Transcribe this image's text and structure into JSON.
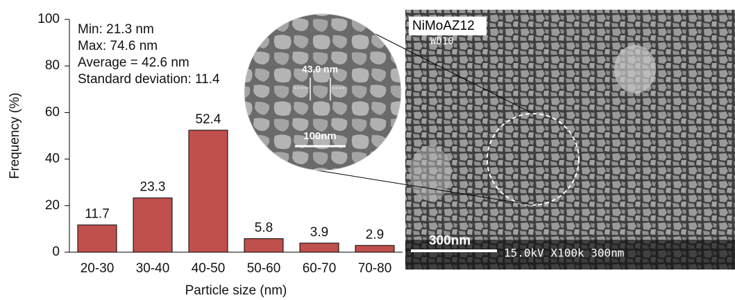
{
  "chart_data": {
    "type": "bar",
    "categories": [
      "20-30",
      "30-40",
      "40-50",
      "50-60",
      "60-70",
      "70-80"
    ],
    "values": [
      11.7,
      23.3,
      52.4,
      5.8,
      3.9,
      2.9
    ],
    "color": "#c0504d",
    "ylim": [
      0,
      100
    ],
    "yticks": [
      0,
      20,
      40,
      60,
      80,
      100
    ],
    "y_label": "Frequency (%)",
    "x_label": "Particle size (nm)",
    "annotations": [
      "Min: 21.3 nm",
      "Max: 74.6 nm",
      "Average = 42.6 nm",
      "Standard deviation: 11.4"
    ],
    "image_labels": {
      "sample": "NiMoAZ12",
      "working_distance": "WD10",
      "scale_bar": "300nm",
      "footer": "15.0kV   X100k   300nm",
      "inset_measure": "43.0 nm",
      "inset_scale": "100nm"
    }
  }
}
